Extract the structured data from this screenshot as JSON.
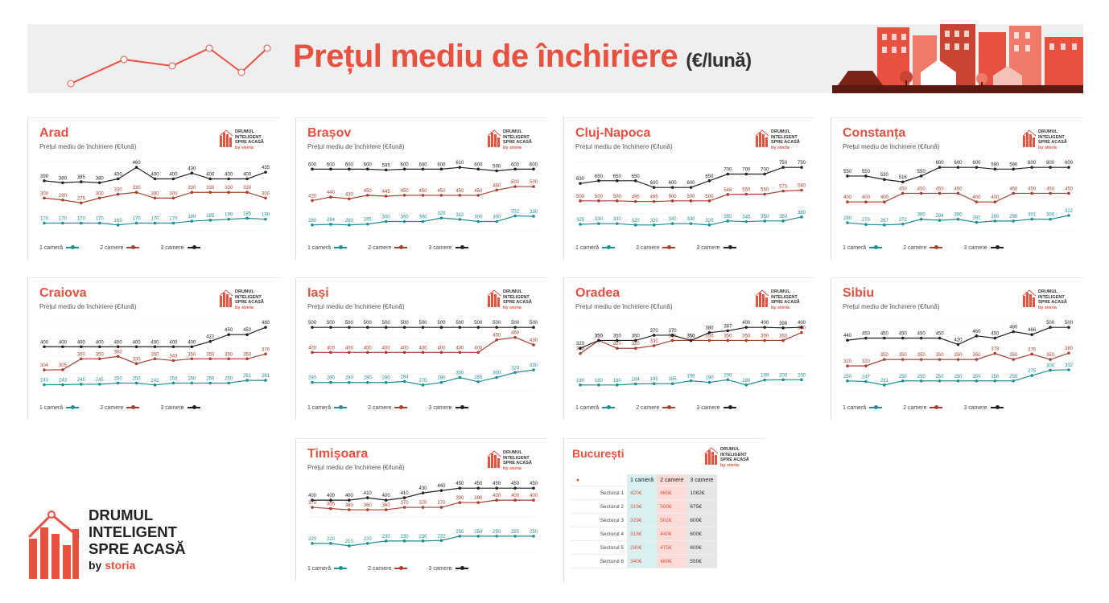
{
  "banner": {
    "title": "Prețul mediu de închiriere",
    "unit": "(€/lună)"
  },
  "brand": {
    "line1": "DRUMUL",
    "line2": "INTELIGENT",
    "line3": "SPRE ACASĂ",
    "by": "by",
    "storia": "storia",
    "logo_icon": "house-bars-logo-icon"
  },
  "colors": {
    "accent": "#e8503f",
    "teal": "#1f8f95",
    "brown": "#a8402f",
    "dark": "#222222"
  },
  "legend": {
    "one": "1 cameră",
    "two": "2 camere",
    "three": "3 camere"
  },
  "chart_data": [
    {
      "type": "line",
      "title": "Arad",
      "subtitle": "Prețul mediu de închiriere (€/lună)",
      "series": [
        {
          "name": "1 cameră",
          "values": [
            170,
            170,
            170,
            170,
            160,
            170,
            170,
            170,
            180,
            185,
            190,
            195,
            190
          ]
        },
        {
          "name": "2 camere",
          "values": [
            300,
            290,
            275,
            300,
            320,
            330,
            300,
            300,
            330,
            330,
            330,
            330,
            300
          ]
        },
        {
          "name": "3 camere",
          "values": [
            390,
            380,
            385,
            380,
            400,
            460,
            400,
            400,
            430,
            400,
            400,
            400,
            435
          ]
        }
      ]
    },
    {
      "type": "line",
      "title": "Brașov",
      "subtitle": "Prețul mediu de închiriere (€/lună)",
      "series": [
        {
          "name": "1 cameră",
          "values": [
            280,
            284,
            280,
            285,
            300,
            300,
            300,
            320,
            312,
            300,
            300,
            332,
            330
          ]
        },
        {
          "name": "2 camere",
          "values": [
            420,
            440,
            430,
            450,
            445,
            450,
            450,
            450,
            450,
            450,
            480,
            500,
            500
          ]
        },
        {
          "name": "3 camere",
          "values": [
            600,
            600,
            600,
            600,
            595,
            600,
            600,
            600,
            610,
            600,
            590,
            600,
            600
          ]
        }
      ]
    },
    {
      "type": "line",
      "title": "Cluj-Napoca",
      "subtitle": "Prețul mediu de închiriere (€/lună)",
      "series": [
        {
          "name": "1 cameră",
          "values": [
            325,
            330,
            330,
            320,
            320,
            330,
            330,
            320,
            350,
            345,
            350,
            350,
            380
          ]
        },
        {
          "name": "2 camere",
          "values": [
            500,
            500,
            500,
            495,
            495,
            500,
            500,
            500,
            548,
            550,
            550,
            573,
            580
          ]
        },
        {
          "name": "3 camere",
          "values": [
            630,
            650,
            650,
            650,
            600,
            600,
            600,
            650,
            700,
            700,
            700,
            750,
            750
          ]
        }
      ]
    },
    {
      "type": "line",
      "title": "Constanța",
      "subtitle": "Prețul mediu de închiriere (€/lună)",
      "series": [
        {
          "name": "1 cameră",
          "values": [
            280,
            270,
            267,
            272,
            300,
            294,
            300,
            282,
            290,
            290,
            301,
            300,
            322
          ]
        },
        {
          "name": "2 camere",
          "values": [
            400,
            400,
            400,
            450,
            450,
            450,
            450,
            400,
            400,
            450,
            450,
            450,
            450
          ]
        },
        {
          "name": "3 camere",
          "values": [
            550,
            550,
            530,
            516,
            550,
            600,
            600,
            600,
            590,
            590,
            600,
            600,
            600
          ]
        }
      ]
    },
    {
      "type": "line",
      "title": "Craiova",
      "subtitle": "Prețul mediu de închiriere (€/lună)",
      "series": [
        {
          "name": "1 cameră",
          "values": [
            243,
            243,
            245,
            245,
            250,
            250,
            242,
            250,
            250,
            250,
            250,
            261,
            261
          ]
        },
        {
          "name": "2 camere",
          "values": [
            304,
            305,
            350,
            350,
            360,
            330,
            350,
            343,
            350,
            350,
            350,
            350,
            370
          ]
        },
        {
          "name": "3 camere",
          "values": [
            400,
            400,
            400,
            400,
            400,
            400,
            400,
            400,
            400,
            422,
            450,
            450,
            480
          ]
        }
      ]
    },
    {
      "type": "line",
      "title": "Iași",
      "subtitle": "Prețul mediu de închiriere (€/lună)",
      "series": [
        {
          "name": "1 cameră",
          "values": [
            280,
            280,
            280,
            280,
            280,
            284,
            270,
            280,
            300,
            283,
            300,
            320,
            330
          ]
        },
        {
          "name": "2 camere",
          "values": [
            400,
            400,
            400,
            400,
            400,
            400,
            400,
            400,
            400,
            400,
            450,
            460,
            430
          ]
        },
        {
          "name": "3 camere",
          "values": [
            500,
            500,
            500,
            500,
            500,
            500,
            500,
            500,
            500,
            500,
            500,
            500,
            500
          ]
        }
      ]
    },
    {
      "type": "line",
      "title": "Oradea",
      "subtitle": "Prețul mediu de închiriere (€/lună)",
      "series": [
        {
          "name": "1 cameră",
          "values": [
            180,
            180,
            180,
            184,
            185,
            185,
            196,
            190,
            200,
            180,
            199,
            200,
            200
          ]
        },
        {
          "name": "2 camere",
          "values": [
            300,
            350,
            320,
            320,
            330,
            350,
            350,
            350,
            350,
            350,
            350,
            350,
            380
          ]
        },
        {
          "name": "3 camere",
          "values": [
            320,
            350,
            350,
            350,
            370,
            370,
            350,
            380,
            387,
            400,
            400,
            398,
            400
          ]
        }
      ]
    },
    {
      "type": "line",
      "title": "Sibiu",
      "subtitle": "Prețul mediu de închiriere (€/lună)",
      "series": [
        {
          "name": "1 cameră",
          "values": [
            250,
            247,
            231,
            250,
            250,
            250,
            250,
            250,
            250,
            250,
            275,
            300,
            302
          ]
        },
        {
          "name": "2 camere",
          "values": [
            320,
            320,
            350,
            350,
            350,
            350,
            350,
            350,
            378,
            350,
            375,
            350,
            380
          ]
        },
        {
          "name": "3 camere",
          "values": [
            440,
            450,
            450,
            450,
            450,
            450,
            420,
            460,
            450,
            480,
            466,
            500,
            500
          ]
        }
      ]
    },
    {
      "type": "line",
      "title": "Timișoara",
      "subtitle": "Prețul mediu de închiriere (€/lună)",
      "series": [
        {
          "name": "1 cameră",
          "values": [
            220,
            220,
            210,
            220,
            230,
            230,
            230,
            232,
            250,
            250,
            250,
            250,
            250
          ]
        },
        {
          "name": "2 camere",
          "values": [
            370,
            365,
            360,
            360,
            360,
            370,
            370,
            370,
            390,
            390,
            400,
            400,
            400
          ]
        },
        {
          "name": "3 camere",
          "values": [
            400,
            400,
            400,
            410,
            400,
            410,
            430,
            440,
            450,
            450,
            450,
            450,
            450
          ]
        }
      ]
    },
    {
      "type": "table",
      "title": "București",
      "columns": [
        "1 cameră",
        "2 camere",
        "3 camere"
      ],
      "rows": [
        {
          "label": "Sectorul 1",
          "values": [
            "420€",
            "665€",
            "1082€"
          ]
        },
        {
          "label": "Sectorul 2",
          "values": [
            "319€",
            "500€",
            "675€"
          ]
        },
        {
          "label": "Sectorul 3",
          "values": [
            "329€",
            "502€",
            "600€"
          ]
        },
        {
          "label": "Sectorul 4",
          "values": [
            "318€",
            "440€",
            "600€"
          ]
        },
        {
          "label": "Sectorul 5",
          "values": [
            "290€",
            "475€",
            "600€"
          ]
        },
        {
          "label": "Sectorul 6",
          "values": [
            "340€",
            "489€",
            "550€"
          ]
        }
      ]
    }
  ]
}
